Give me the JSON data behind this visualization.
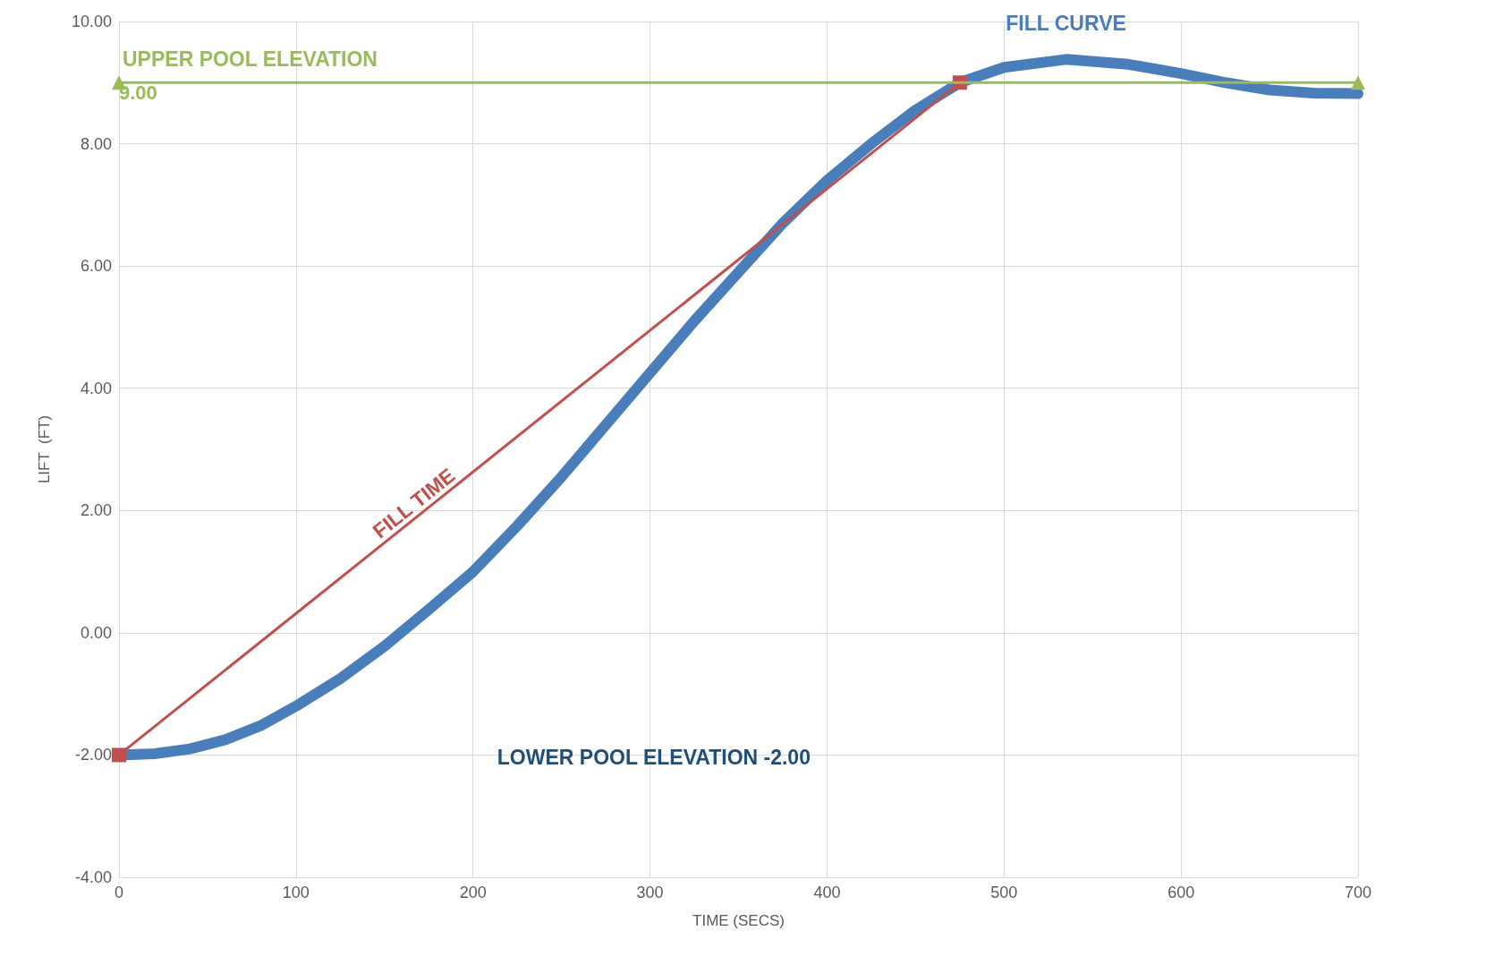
{
  "chart_data": {
    "type": "line",
    "xlabel": "TIME (SECS)",
    "ylabel": "LIFT  (FT)",
    "xlim": [
      0,
      700
    ],
    "xticks": [
      0,
      100,
      200,
      300,
      400,
      500,
      600,
      700
    ],
    "ylim": [
      -4,
      10
    ],
    "yticks": [
      {
        "value": -4,
        "label": "-4.00"
      },
      {
        "value": -2,
        "label": "-2.00"
      },
      {
        "value": 0,
        "label": "0.00"
      },
      {
        "value": 2,
        "label": "2.00"
      },
      {
        "value": 4,
        "label": "4.00"
      },
      {
        "value": 6,
        "label": "6.00"
      },
      {
        "value": 8,
        "label": "8.00"
      },
      {
        "value": 10,
        "label": "10.00"
      }
    ],
    "grid": true,
    "legend": false,
    "series": [
      {
        "name": "FILL CURVE",
        "color": "#4a7ebb",
        "marker": "none",
        "x": [
          0,
          20,
          40,
          60,
          80,
          100,
          125,
          150,
          175,
          200,
          225,
          250,
          275,
          300,
          325,
          350,
          375,
          400,
          425,
          450,
          475,
          500,
          535,
          570,
          600,
          625,
          650,
          675,
          700
        ],
        "values": [
          -2,
          -1.98,
          -1.9,
          -1.75,
          -1.52,
          -1.2,
          -0.75,
          -0.22,
          0.38,
          1.0,
          1.75,
          2.55,
          3.4,
          4.25,
          5.1,
          5.9,
          6.7,
          7.4,
          8.0,
          8.55,
          9.0,
          9.25,
          9.38,
          9.3,
          9.15,
          9.0,
          8.88,
          8.83,
          8.82
        ]
      },
      {
        "name": "FILL TIME",
        "color": "#c0504d",
        "marker": "square",
        "x": [
          0,
          475
        ],
        "values": [
          -2,
          9
        ]
      },
      {
        "name": "UPPER POOL ELEVATION",
        "color": "#9bbb59",
        "marker": "triangle",
        "x": [
          0,
          700
        ],
        "values": [
          9,
          9
        ],
        "value_labels": [
          "9.00",
          null
        ]
      }
    ],
    "annotations": [
      "LOWER POOL ELEVATION -2.00"
    ]
  }
}
